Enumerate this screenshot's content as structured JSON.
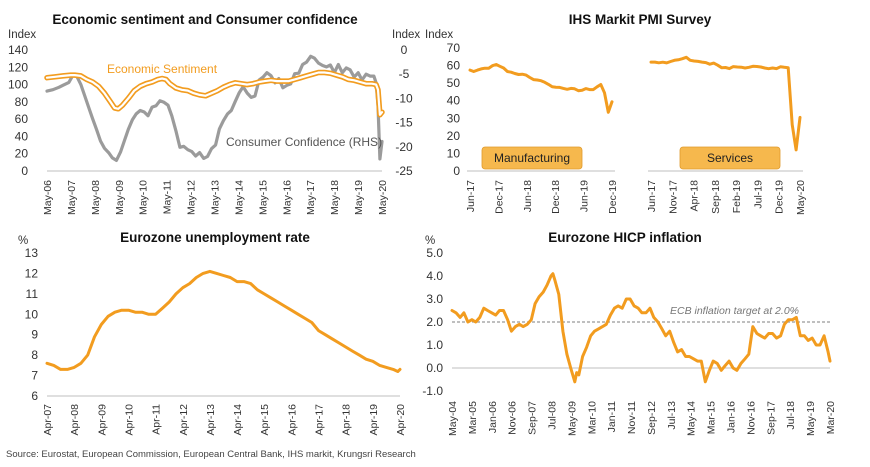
{
  "source": "Source: Eurostat, European Commission, European Central Bank, IHS markit, Krungsri Research",
  "colors": {
    "orange": "#F29C1F",
    "grey": "#9B9B9B",
    "box": "#F6B84D",
    "dashed": "#999999"
  },
  "chart_data": [
    {
      "type": "line",
      "title": "Economic sentiment and Consumer confidence",
      "ylabel_left": "Index",
      "ylabel_right": "Index",
      "yticks_left": [
        "0",
        "20",
        "40",
        "60",
        "80",
        "100",
        "120",
        "140"
      ],
      "yticks_right": [
        "-25",
        "-20",
        "-15",
        "-10",
        "-5",
        "0"
      ],
      "ylim_left": [
        0,
        140
      ],
      "ylim_right": [
        -25,
        0
      ],
      "xticks": [
        "May-06",
        "May-07",
        "May-08",
        "May-09",
        "May-10",
        "May-11",
        "May-12",
        "May-13",
        "May-14",
        "May-15",
        "May-16",
        "May-17",
        "May-18",
        "May-19",
        "May-20"
      ],
      "series": [
        {
          "name": "Economic Sentiment",
          "axis": "left",
          "x": [
            2006.33,
            2006.67,
            2007.0,
            2007.33,
            2007.5,
            2007.75,
            2008.0,
            2008.25,
            2008.5,
            2008.75,
            2009.0,
            2009.17,
            2009.33,
            2009.5,
            2009.75,
            2010.0,
            2010.25,
            2010.5,
            2010.75,
            2011.0,
            2011.17,
            2011.33,
            2011.5,
            2011.75,
            2012.0,
            2012.25,
            2012.5,
            2012.75,
            2013.0,
            2013.25,
            2013.5,
            2013.75,
            2014.0,
            2014.25,
            2014.5,
            2014.75,
            2015.0,
            2015.25,
            2015.5,
            2015.75,
            2016.0,
            2016.25,
            2016.5,
            2016.75,
            2017.0,
            2017.25,
            2017.5,
            2017.75,
            2018.0,
            2018.25,
            2018.5,
            2018.75,
            2019.0,
            2019.25,
            2019.5,
            2019.75,
            2020.0,
            2020.17,
            2020.25,
            2020.33,
            2020.42
          ],
          "values": [
            108,
            109,
            110,
            111,
            111,
            110,
            106,
            103,
            98,
            90,
            80,
            73,
            72,
            76,
            84,
            93,
            98,
            101,
            103,
            106,
            107,
            106,
            101,
            96,
            94,
            93,
            90,
            88,
            87,
            90,
            93,
            97,
            100,
            102,
            101,
            100,
            101,
            103,
            104,
            105,
            104,
            104,
            104,
            106,
            108,
            110,
            112,
            114,
            114,
            113,
            111,
            109,
            106,
            105,
            103,
            101,
            101,
            100,
            94,
            65,
            68
          ]
        },
        {
          "name": "Consumer Confidence (RHS)",
          "axis": "right",
          "x": [
            2006.33,
            2006.58,
            2006.83,
            2007.0,
            2007.25,
            2007.42,
            2007.58,
            2007.75,
            2007.92,
            2008.08,
            2008.25,
            2008.42,
            2008.58,
            2008.75,
            2008.92,
            2009.08,
            2009.25,
            2009.42,
            2009.58,
            2009.75,
            2009.92,
            2010.08,
            2010.25,
            2010.42,
            2010.58,
            2010.75,
            2010.92,
            2011.08,
            2011.25,
            2011.42,
            2011.58,
            2011.75,
            2011.92,
            2012.08,
            2012.25,
            2012.42,
            2012.58,
            2012.75,
            2012.92,
            2013.08,
            2013.25,
            2013.42,
            2013.58,
            2013.75,
            2013.92,
            2014.08,
            2014.25,
            2014.42,
            2014.58,
            2014.75,
            2014.92,
            2015.08,
            2015.25,
            2015.42,
            2015.58,
            2015.75,
            2015.92,
            2016.08,
            2016.25,
            2016.42,
            2016.58,
            2016.75,
            2016.92,
            2017.08,
            2017.25,
            2017.42,
            2017.58,
            2017.75,
            2017.92,
            2018.08,
            2018.25,
            2018.42,
            2018.58,
            2018.75,
            2018.92,
            2019.08,
            2019.25,
            2019.42,
            2019.58,
            2019.75,
            2019.92,
            2020.08,
            2020.17,
            2020.25,
            2020.33,
            2020.42
          ],
          "values": [
            -8.5,
            -8.2,
            -7.7,
            -7.3,
            -6.7,
            -5.2,
            -5.4,
            -7.1,
            -9.5,
            -11.8,
            -14.2,
            -16.5,
            -18.8,
            -20.3,
            -21.2,
            -22.3,
            -22.8,
            -21.1,
            -18.8,
            -16.4,
            -14.4,
            -13.2,
            -12.5,
            -12.8,
            -13.6,
            -11.8,
            -11.5,
            -10.5,
            -10.8,
            -11.4,
            -13.6,
            -16.7,
            -20.1,
            -19.9,
            -20.6,
            -21.0,
            -21.9,
            -21.2,
            -22.4,
            -22.0,
            -20.4,
            -19.6,
            -16.3,
            -14.6,
            -13.2,
            -12.5,
            -10.6,
            -8.8,
            -7.6,
            -8.9,
            -9.8,
            -9.5,
            -6.2,
            -5.6,
            -4.7,
            -5.3,
            -6.8,
            -5.9,
            -7.8,
            -7.3,
            -7.0,
            -4.9,
            -4.8,
            -3.0,
            -2.5,
            -1.3,
            -1.7,
            -2.7,
            -3.2,
            -3.5,
            -3.1,
            -4.7,
            -3.0,
            -4.7,
            -3.7,
            -4.1,
            -5.6,
            -4.7,
            -6.2,
            -5.0,
            -5.4,
            -5.4,
            -6.8,
            -11.5,
            -22.5,
            -18.9
          ]
        }
      ]
    },
    {
      "type": "line",
      "title": "IHS Markit PMI Survey",
      "ylabel": "Index",
      "yticks": [
        "0",
        "10",
        "20",
        "30",
        "40",
        "50",
        "60",
        "70"
      ],
      "ylim": [
        0,
        70
      ],
      "panels": [
        {
          "name": "Manufacturing",
          "xticks": [
            "Jun-17",
            "Dec-17",
            "Jun-18",
            "Dec-18",
            "Jun-19",
            "Dec-19"
          ],
          "x": [
            0,
            1,
            2,
            3,
            4,
            5,
            6,
            7,
            8,
            9,
            10,
            11,
            12,
            13,
            14,
            15,
            16,
            17,
            18,
            19,
            20,
            21,
            22,
            23,
            24,
            25,
            26,
            27,
            28,
            29,
            30,
            31,
            32,
            33,
            34,
            35,
            36,
            37,
            38
          ],
          "values": [
            57.4,
            56.6,
            57.4,
            58.1,
            58.5,
            58.5,
            59.9,
            60.6,
            59.6,
            58.6,
            56.6,
            56.2,
            55.5,
            54.9,
            55.1,
            54.6,
            53.2,
            52.0,
            51.8,
            51.4,
            50.5,
            49.3,
            47.9,
            47.7,
            47.6,
            47.0,
            46.5,
            47.0,
            46.8,
            45.7,
            45.9,
            46.9,
            46.3,
            46.3,
            47.9,
            49.2,
            44.5,
            33.4,
            39.4
          ]
        },
        {
          "name": "Services",
          "xticks": [
            "Jun-17",
            "Nov-17",
            "Apr-18",
            "Sep-18",
            "Feb-19",
            "Jul-19",
            "Dec-19",
            "May-20"
          ],
          "x": [
            0,
            1,
            2,
            3,
            4,
            5,
            6,
            7,
            8,
            9,
            10,
            11,
            12,
            13,
            14,
            15,
            16,
            17,
            18,
            19,
            20,
            21,
            22,
            23,
            24,
            25,
            26,
            27,
            28,
            29,
            30,
            31,
            32,
            33,
            34,
            35,
            36,
            37,
            38
          ],
          "values": [
            62.0,
            62.0,
            61.6,
            61.9,
            61.5,
            62.3,
            63.0,
            63.3,
            63.9,
            64.7,
            63.0,
            62.6,
            62.4,
            62.0,
            61.7,
            60.8,
            61.4,
            60.2,
            58.8,
            58.9,
            58.3,
            59.4,
            59.2,
            59.1,
            58.6,
            59.0,
            59.6,
            59.5,
            59.2,
            58.6,
            58.2,
            58.6,
            58.3,
            59.3,
            59.0,
            58.8,
            26.4,
            12.0,
            30.5
          ]
        }
      ]
    },
    {
      "type": "line",
      "title": "Eurozone unemployment rate",
      "ylabel": "%",
      "yticks": [
        "6",
        "7",
        "8",
        "9",
        "10",
        "11",
        "12",
        "13"
      ],
      "ylim": [
        6,
        13
      ],
      "xticks": [
        "Apr-07",
        "Apr-08",
        "Apr-09",
        "Apr-10",
        "Apr-11",
        "Apr-12",
        "Apr-13",
        "Apr-14",
        "Apr-15",
        "Apr-16",
        "Apr-17",
        "Apr-18",
        "Apr-19",
        "Apr-20"
      ],
      "series": [
        {
          "name": "Unemployment rate",
          "x": [
            2007.25,
            2007.5,
            2007.75,
            2008.0,
            2008.25,
            2008.5,
            2008.75,
            2009.0,
            2009.25,
            2009.5,
            2009.75,
            2010.0,
            2010.25,
            2010.5,
            2010.75,
            2011.0,
            2011.25,
            2011.5,
            2011.75,
            2012.0,
            2012.25,
            2012.5,
            2012.75,
            2013.0,
            2013.25,
            2013.5,
            2013.75,
            2014.0,
            2014.25,
            2014.5,
            2014.75,
            2015.0,
            2015.25,
            2015.5,
            2015.75,
            2016.0,
            2016.25,
            2016.5,
            2016.75,
            2017.0,
            2017.25,
            2017.5,
            2017.75,
            2018.0,
            2018.25,
            2018.5,
            2018.75,
            2019.0,
            2019.25,
            2019.5,
            2019.75,
            2020.0,
            2020.17,
            2020.25
          ],
          "values": [
            7.6,
            7.5,
            7.3,
            7.3,
            7.4,
            7.6,
            8.0,
            8.9,
            9.5,
            9.9,
            10.1,
            10.2,
            10.2,
            10.1,
            10.1,
            10.0,
            10.0,
            10.3,
            10.6,
            11.0,
            11.3,
            11.5,
            11.8,
            12.0,
            12.1,
            12.0,
            11.9,
            11.8,
            11.6,
            11.6,
            11.5,
            11.2,
            11.0,
            10.8,
            10.6,
            10.4,
            10.2,
            10.0,
            9.8,
            9.6,
            9.2,
            9.0,
            8.8,
            8.6,
            8.4,
            8.2,
            8.0,
            7.8,
            7.7,
            7.5,
            7.4,
            7.3,
            7.2,
            7.3
          ]
        }
      ]
    },
    {
      "type": "line",
      "title": "Eurozone HICP inflation",
      "ylabel": "%",
      "yticks": [
        "-1.0",
        "0.0",
        "1.0",
        "2.0",
        "3.0",
        "4.0",
        "5.0"
      ],
      "ylim": [
        -1,
        5
      ],
      "xticks": [
        "May-04",
        "Mar-05",
        "Jan-06",
        "Nov-06",
        "Sep-07",
        "Jul-08",
        "May-09",
        "Mar-10",
        "Jan-11",
        "Nov-11",
        "Sep-12",
        "Jul-13",
        "May-14",
        "Mar-15",
        "Jan-16",
        "Nov-16",
        "Sep-17",
        "Jul-18",
        "May-19",
        "Mar-20"
      ],
      "annotation": "ECB inflation target at 2.0%",
      "target": 2.0,
      "series": [
        {
          "name": "HICP inflation",
          "x": [
            2004.33,
            2004.5,
            2004.67,
            2004.83,
            2005.0,
            2005.17,
            2005.33,
            2005.5,
            2005.67,
            2005.83,
            2006.0,
            2006.17,
            2006.33,
            2006.5,
            2006.67,
            2006.83,
            2007.0,
            2007.17,
            2007.33,
            2007.5,
            2007.67,
            2007.83,
            2008.0,
            2008.17,
            2008.33,
            2008.5,
            2008.58,
            2008.67,
            2008.83,
            2009.0,
            2009.17,
            2009.33,
            2009.5,
            2009.58,
            2009.67,
            2009.83,
            2010.0,
            2010.17,
            2010.33,
            2010.5,
            2010.67,
            2010.83,
            2011.0,
            2011.17,
            2011.33,
            2011.5,
            2011.67,
            2011.83,
            2012.0,
            2012.17,
            2012.33,
            2012.5,
            2012.67,
            2012.83,
            2013.0,
            2013.17,
            2013.33,
            2013.5,
            2013.67,
            2013.83,
            2014.0,
            2014.17,
            2014.33,
            2014.5,
            2014.67,
            2014.83,
            2015.0,
            2015.17,
            2015.33,
            2015.5,
            2015.67,
            2015.83,
            2016.0,
            2016.17,
            2016.33,
            2016.5,
            2016.67,
            2016.83,
            2017.0,
            2017.17,
            2017.33,
            2017.5,
            2017.67,
            2017.83,
            2018.0,
            2018.17,
            2018.33,
            2018.5,
            2018.67,
            2018.83,
            2019.0,
            2019.17,
            2019.33,
            2019.5,
            2019.67,
            2019.83,
            2020.0,
            2020.17,
            2020.25
          ],
          "values": [
            2.5,
            2.4,
            2.2,
            2.4,
            2.0,
            2.1,
            2.0,
            2.2,
            2.6,
            2.5,
            2.4,
            2.3,
            2.5,
            2.5,
            2.1,
            1.6,
            1.8,
            1.9,
            1.8,
            1.9,
            2.1,
            2.8,
            3.1,
            3.3,
            3.6,
            4.0,
            4.1,
            3.8,
            3.2,
            1.6,
            0.6,
            0.0,
            -0.6,
            -0.2,
            -0.3,
            0.5,
            0.9,
            1.4,
            1.6,
            1.7,
            1.8,
            1.9,
            2.3,
            2.6,
            2.7,
            2.6,
            3.0,
            3.0,
            2.7,
            2.6,
            2.4,
            2.4,
            2.6,
            2.2,
            2.0,
            1.7,
            1.4,
            1.6,
            1.1,
            0.7,
            0.8,
            0.5,
            0.5,
            0.4,
            0.3,
            0.3,
            -0.6,
            -0.1,
            0.3,
            0.2,
            -0.1,
            0.1,
            0.3,
            0.0,
            -0.1,
            0.2,
            0.4,
            0.6,
            1.8,
            1.5,
            1.4,
            1.3,
            1.5,
            1.5,
            1.3,
            1.4,
            1.9,
            2.1,
            2.1,
            2.2,
            1.4,
            1.4,
            1.2,
            1.3,
            1.0,
            1.0,
            1.4,
            0.7,
            0.3
          ]
        }
      ]
    }
  ]
}
